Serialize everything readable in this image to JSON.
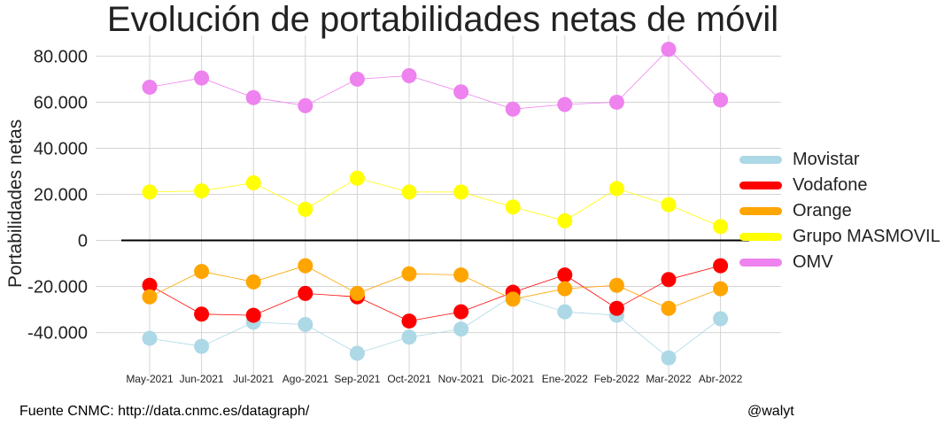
{
  "chart_data": {
    "type": "line",
    "title": "Evolución de portabilidades netas de móvil",
    "ylabel": "Portabilidades netas",
    "xlabel": "",
    "categories": [
      "May-2021",
      "Jun-2021",
      "Jul-2021",
      "Ago-2021",
      "Sep-2021",
      "Oct-2021",
      "Nov-2021",
      "Dic-2021",
      "Ene-2022",
      "Feb-2022",
      "Mar-2022",
      "Abr-2022"
    ],
    "yticks": [
      -40000,
      -20000,
      0,
      20000,
      40000,
      60000,
      80000
    ],
    "ytick_labels": [
      "-40.000",
      "-20.000",
      "0",
      "20.000",
      "40.000",
      "60.000",
      "80.000"
    ],
    "ylim": [
      -59000,
      89000
    ],
    "grid": true,
    "legend_position": "right",
    "series": [
      {
        "name": "Movistar",
        "color": "#add8e6",
        "values": [
          -42500,
          -46000,
          -35500,
          -36500,
          -49000,
          -42000,
          -38500,
          -24000,
          -31000,
          -32500,
          -51000,
          -34000
        ]
      },
      {
        "name": "Vodafone",
        "color": "#ff0000",
        "values": [
          -19500,
          -32000,
          -32500,
          -23000,
          -24500,
          -35000,
          -31000,
          -22500,
          -15000,
          -29500,
          -17000,
          -11000
        ]
      },
      {
        "name": "Orange",
        "color": "#ffa500",
        "values": [
          -24500,
          -13500,
          -18000,
          -11000,
          -23000,
          -14500,
          -15000,
          -25500,
          -21000,
          -19500,
          -29500,
          -21000
        ]
      },
      {
        "name": "Grupo MASMOVIL",
        "color": "#ffff00",
        "values": [
          21000,
          21500,
          25000,
          13500,
          27000,
          21000,
          21000,
          14500,
          8500,
          22500,
          15500,
          6000
        ]
      },
      {
        "name": "OMV",
        "color": "#ee82ee",
        "values": [
          66500,
          70500,
          62000,
          58500,
          70000,
          71500,
          64500,
          57000,
          59000,
          60000,
          83000,
          61000
        ]
      }
    ]
  },
  "footer": {
    "source": "Fuente CNMC: http://data.cnmc.es/datagraph/",
    "author": "@walyt"
  }
}
